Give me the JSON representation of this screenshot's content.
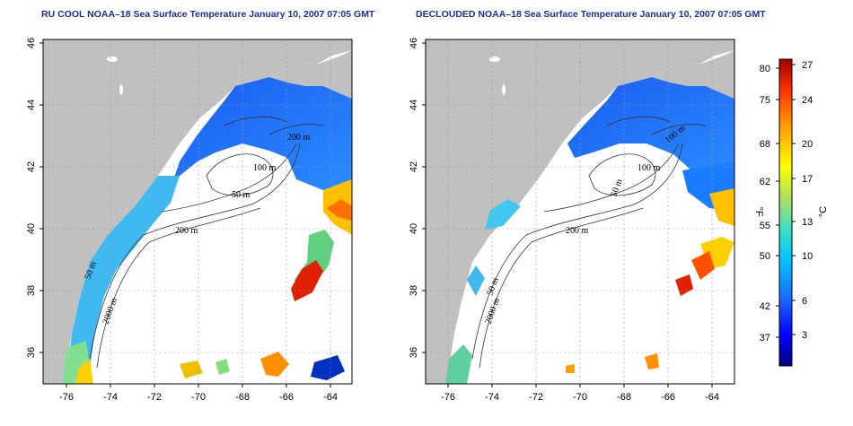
{
  "panels": [
    {
      "title": "RU COOL NOAA–18 Sea Surface Temperature January 10, 2007 07:05 GMT",
      "contour_labels": [
        "200 m",
        "100 m",
        "50 m",
        "200 m",
        "50 m",
        "2000 m",
        "100 m"
      ]
    },
    {
      "title": "DECLOUDED NOAA–18 Sea Surface Temperature January 10, 2007 07:05 GMT",
      "contour_labels": [
        "100 m",
        "50 m",
        "200 m",
        "50 m",
        "2000 m",
        "100 m"
      ]
    }
  ],
  "axes": {
    "x_ticks": [
      "-76",
      "-74",
      "-72",
      "-70",
      "-68",
      "-66",
      "-64"
    ],
    "y_ticks": [
      "46",
      "44",
      "42",
      "40",
      "38",
      "36"
    ],
    "lon_range": [
      -77,
      -63
    ],
    "lat_range": [
      35,
      46
    ]
  },
  "colorbar": {
    "fahrenheit_label": "°F",
    "celsius_label": "°C",
    "fahrenheit_ticks": [
      "80",
      "75",
      "68",
      "62",
      "55",
      "50",
      "42",
      "37"
    ],
    "celsius_ticks": [
      "27",
      "24",
      "20",
      "17",
      "13",
      "10",
      "6",
      "3"
    ],
    "colors": [
      "#000080",
      "#0000ff",
      "#1a6cff",
      "#00c8ff",
      "#40e0c0",
      "#b0e060",
      "#ffff00",
      "#ffa000",
      "#ff3000",
      "#a00000"
    ]
  },
  "colors": {
    "land": "#c0c0c0",
    "ocean_cloud": "#ffffff",
    "title": "#1a2fa0"
  }
}
